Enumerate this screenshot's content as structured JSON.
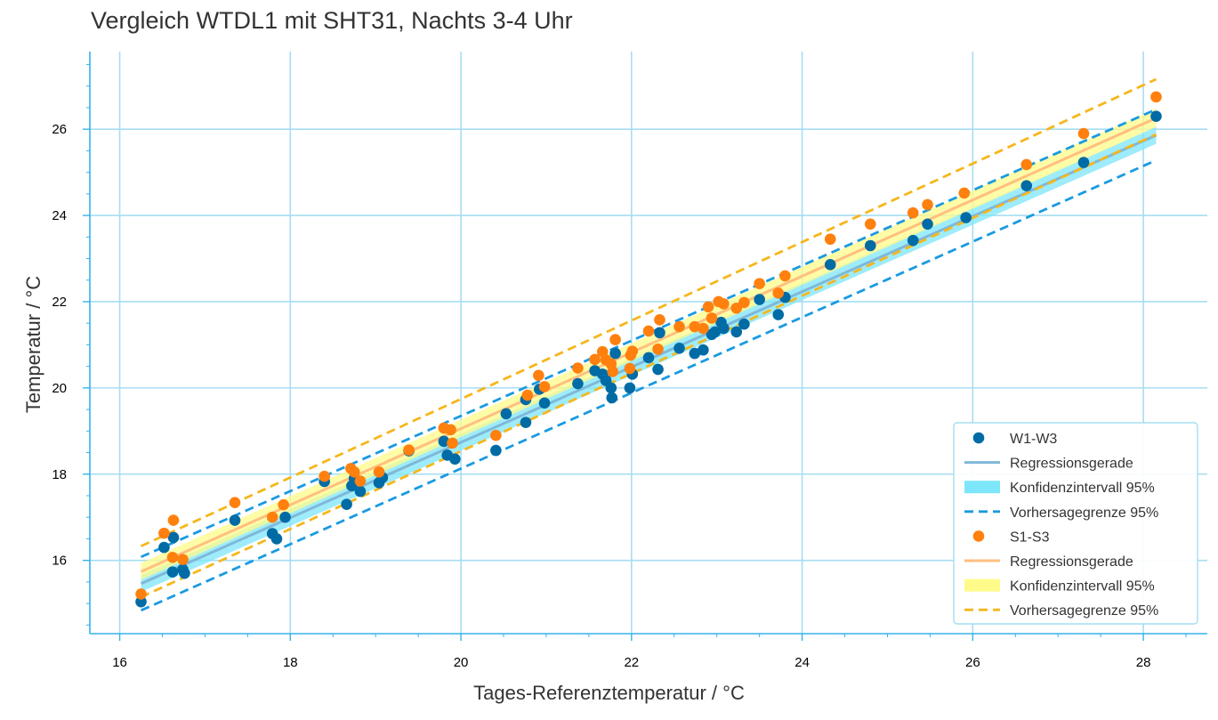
{
  "chart_data": {
    "type": "scatter",
    "title": "Vergleich WTDL1 mit SHT31, Nachts 3-4 Uhr",
    "xlabel": "Tages-Referenztemperatur / °C",
    "ylabel": "Temperatur / °C",
    "xlim": [
      15.65,
      28.75
    ],
    "ylim": [
      14.3,
      27.8
    ],
    "x_ticks": [
      16,
      18,
      20,
      22,
      24,
      26,
      28
    ],
    "y_ticks": [
      16,
      18,
      20,
      22,
      24,
      26
    ],
    "x_tick_labels": [
      "16",
      "18",
      "20",
      "22",
      "24",
      "26",
      "28"
    ],
    "y_tick_labels": [
      "16",
      "18",
      "20",
      "22",
      "24",
      "26"
    ],
    "grid": true,
    "legend_position": "bottom-right",
    "colors": {
      "w_points": "#006ba4",
      "w_regression": "#7fb8d8",
      "w_ci": "#7ee6fa",
      "w_pred": "#1a9ae0",
      "s_points": "#ff800e",
      "s_regression": "#ffbf80",
      "s_ci": "#fffb8a",
      "s_pred": "#f5b71c",
      "grid": "#a6ddf2",
      "axis": "#35b2ea"
    },
    "legend": [
      {
        "label": "W1-W3",
        "kind": "marker",
        "color": "#006ba4"
      },
      {
        "label": "Regressionsgerade",
        "kind": "line",
        "color": "#7fb8d8"
      },
      {
        "label": "Konfidenzintervall 95%",
        "kind": "patch",
        "color": "#7ee6fa"
      },
      {
        "label": "Vorhersagegrenze 95%",
        "kind": "dash",
        "color": "#1a9ae0"
      },
      {
        "label": "S1-S3",
        "kind": "marker",
        "color": "#ff800e"
      },
      {
        "label": "Regressionsgerade",
        "kind": "line",
        "color": "#ffbf80"
      },
      {
        "label": "Konfidenzintervall 95%",
        "kind": "patch",
        "color": "#fffb8a"
      },
      {
        "label": "Vorhersagegrenze 95%",
        "kind": "dash",
        "color": "#f5b71c"
      }
    ],
    "series": [
      {
        "name": "W1-W3",
        "regression": {
          "x": [
            16.25,
            28.15
          ],
          "y": [
            15.46,
            25.86
          ]
        },
        "confidence_band": {
          "x": [
            16.25,
            28.15
          ],
          "lower": [
            15.27,
            25.66
          ],
          "upper": [
            15.66,
            26.06
          ]
        },
        "prediction_bounds": {
          "x": [
            16.25,
            28.15
          ],
          "lower": [
            14.84,
            25.28
          ],
          "upper": [
            16.08,
            26.46
          ]
        },
        "points": [
          [
            16.25,
            15.04
          ],
          [
            16.52,
            16.3
          ],
          [
            16.62,
            15.73
          ],
          [
            16.63,
            16.53
          ],
          [
            16.74,
            15.79
          ],
          [
            16.76,
            15.7
          ],
          [
            17.35,
            16.93
          ],
          [
            17.79,
            16.62
          ],
          [
            17.84,
            16.5
          ],
          [
            17.94,
            17.0
          ],
          [
            18.4,
            17.83
          ],
          [
            18.66,
            17.3
          ],
          [
            18.72,
            17.73
          ],
          [
            18.75,
            17.9
          ],
          [
            18.82,
            17.6
          ],
          [
            19.04,
            17.8
          ],
          [
            19.08,
            17.92
          ],
          [
            19.39,
            18.54
          ],
          [
            19.8,
            18.76
          ],
          [
            19.84,
            18.44
          ],
          [
            19.93,
            18.35
          ],
          [
            20.41,
            18.55
          ],
          [
            20.53,
            19.4
          ],
          [
            20.76,
            19.2
          ],
          [
            20.76,
            19.73
          ],
          [
            20.92,
            19.97
          ],
          [
            20.98,
            19.65
          ],
          [
            21.37,
            20.1
          ],
          [
            21.57,
            20.4
          ],
          [
            21.66,
            20.32
          ],
          [
            21.7,
            20.17
          ],
          [
            21.76,
            20.0
          ],
          [
            21.77,
            19.77
          ],
          [
            21.81,
            20.8
          ],
          [
            21.98,
            20.0
          ],
          [
            22.01,
            20.32
          ],
          [
            22.2,
            20.7
          ],
          [
            22.31,
            20.43
          ],
          [
            22.33,
            21.28
          ],
          [
            22.56,
            20.92
          ],
          [
            22.74,
            20.8
          ],
          [
            22.84,
            20.88
          ],
          [
            22.94,
            21.24
          ],
          [
            22.98,
            21.3
          ],
          [
            23.05,
            21.52
          ],
          [
            23.08,
            21.38
          ],
          [
            23.23,
            21.3
          ],
          [
            23.32,
            21.48
          ],
          [
            23.5,
            22.05
          ],
          [
            23.72,
            21.7
          ],
          [
            23.8,
            22.1
          ],
          [
            24.33,
            22.86
          ],
          [
            24.8,
            23.3
          ],
          [
            25.3,
            23.42
          ],
          [
            25.47,
            23.8
          ],
          [
            25.92,
            23.95
          ],
          [
            26.63,
            24.69
          ],
          [
            27.3,
            25.23
          ],
          [
            28.15,
            26.3
          ]
        ]
      },
      {
        "name": "S1-S3",
        "regression": {
          "x": [
            16.25,
            28.15
          ],
          "y": [
            15.74,
            26.26
          ]
        },
        "confidence_band": {
          "x": [
            16.25,
            28.15
          ],
          "lower": [
            15.55,
            26.05
          ],
          "upper": [
            15.94,
            26.48
          ]
        },
        "prediction_bounds": {
          "x": [
            16.25,
            28.15
          ],
          "lower": [
            15.15,
            25.88
          ],
          "upper": [
            16.33,
            27.16
          ]
        },
        "points": [
          [
            16.25,
            15.22
          ],
          [
            16.52,
            16.63
          ],
          [
            16.62,
            16.07
          ],
          [
            16.63,
            16.93
          ],
          [
            16.74,
            16.02
          ],
          [
            17.35,
            17.34
          ],
          [
            17.79,
            17.0
          ],
          [
            17.92,
            17.29
          ],
          [
            18.4,
            17.95
          ],
          [
            18.71,
            18.13
          ],
          [
            18.75,
            18.05
          ],
          [
            18.82,
            17.84
          ],
          [
            19.04,
            18.05
          ],
          [
            19.39,
            18.56
          ],
          [
            19.8,
            19.07
          ],
          [
            19.88,
            19.03
          ],
          [
            19.9,
            18.72
          ],
          [
            20.41,
            18.9
          ],
          [
            20.78,
            19.83
          ],
          [
            20.91,
            20.29
          ],
          [
            20.98,
            20.03
          ],
          [
            21.37,
            20.46
          ],
          [
            21.57,
            20.66
          ],
          [
            21.66,
            20.84
          ],
          [
            21.7,
            20.65
          ],
          [
            21.76,
            20.56
          ],
          [
            21.78,
            20.38
          ],
          [
            21.81,
            21.12
          ],
          [
            21.98,
            20.45
          ],
          [
            21.99,
            20.76
          ],
          [
            22.01,
            20.85
          ],
          [
            22.2,
            21.32
          ],
          [
            22.31,
            20.9
          ],
          [
            22.33,
            21.58
          ],
          [
            22.56,
            21.42
          ],
          [
            22.74,
            21.42
          ],
          [
            22.84,
            21.38
          ],
          [
            22.9,
            21.88
          ],
          [
            22.94,
            21.62
          ],
          [
            23.02,
            22.0
          ],
          [
            23.08,
            21.95
          ],
          [
            23.23,
            21.85
          ],
          [
            23.32,
            21.98
          ],
          [
            23.5,
            22.42
          ],
          [
            23.72,
            22.2
          ],
          [
            23.8,
            22.6
          ],
          [
            24.33,
            23.45
          ],
          [
            24.8,
            23.8
          ],
          [
            25.3,
            24.06
          ],
          [
            25.47,
            24.25
          ],
          [
            25.9,
            24.52
          ],
          [
            26.63,
            25.18
          ],
          [
            27.3,
            25.9
          ],
          [
            28.15,
            26.75
          ]
        ]
      }
    ]
  }
}
